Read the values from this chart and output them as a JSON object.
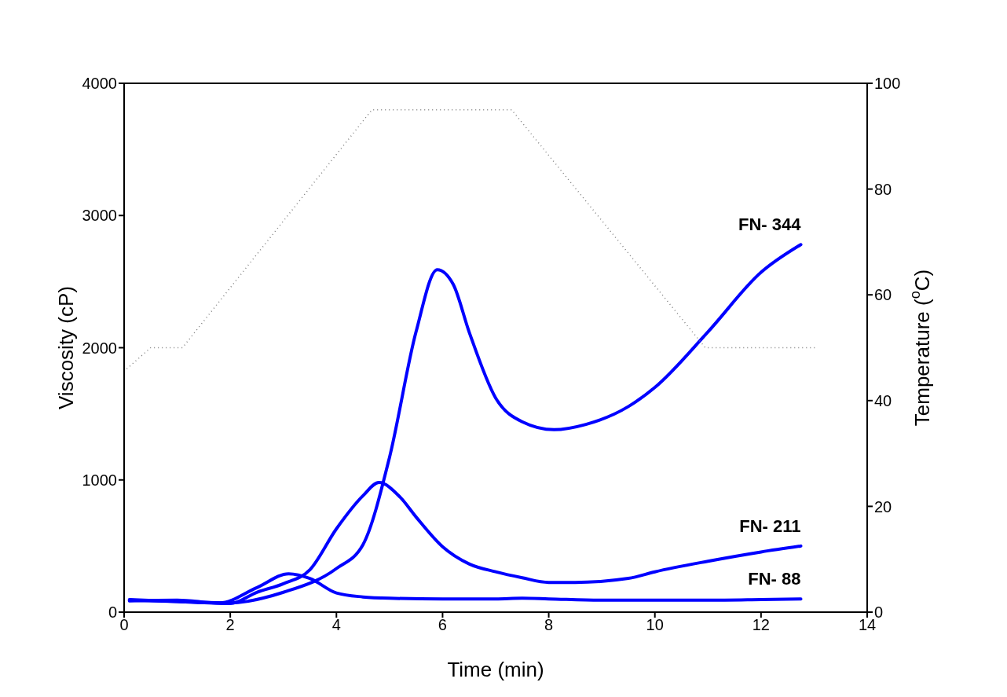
{
  "chart_data": {
    "type": "line",
    "xlabel": "Time (min)",
    "ylabel": "Viscosity (cP)",
    "y2label": "Temperature ($^{o}$C)",
    "xlim": [
      0,
      14
    ],
    "xticks": [
      0,
      2,
      4,
      6,
      8,
      10,
      12,
      14
    ],
    "ylim": [
      0,
      4000
    ],
    "yticks": [
      0,
      1000,
      2000,
      3000,
      4000
    ],
    "y2lim": [
      0,
      100
    ],
    "y2ticks": [
      0,
      20,
      40,
      60,
      80,
      100
    ],
    "marker": "none",
    "series": [
      {
        "name": "FN- 344",
        "color": "#0000ff",
        "x": [
          0.1,
          1,
          2,
          3,
          4,
          4.5,
          5,
          5.5,
          5.9,
          6.2,
          6.5,
          7,
          7.5,
          8.1,
          8.7,
          9.5,
          10,
          11,
          12,
          12.75
        ],
        "values": [
          95,
          80,
          70,
          150,
          330,
          510,
          1170,
          2120,
          2590,
          2480,
          2120,
          1620,
          1440,
          1380,
          1420,
          1555,
          1700,
          2120,
          2570,
          2780
        ]
      },
      {
        "name": "FN- 211",
        "color": "#0000ff",
        "x": [
          0.1,
          1,
          2,
          2.5,
          3,
          3.5,
          4,
          4.5,
          4.8,
          5.2,
          5.5,
          6,
          6.5,
          7,
          7.5,
          8,
          8.5,
          9.5,
          10,
          11,
          12,
          12.75
        ],
        "values": [
          90,
          80,
          65,
          150,
          215,
          320,
          630,
          880,
          980,
          870,
          720,
          495,
          365,
          305,
          260,
          225,
          225,
          255,
          305,
          385,
          455,
          500
        ]
      },
      {
        "name": "FN- 88",
        "color": "#0000ff",
        "x": [
          0.1,
          1,
          1.8,
          2.5,
          3.1,
          3.5,
          4,
          4.5,
          5,
          6,
          7,
          7.5,
          8,
          9,
          10,
          11,
          12,
          12.75
        ],
        "values": [
          85,
          90,
          70,
          185,
          290,
          255,
          145,
          115,
          105,
          100,
          100,
          105,
          100,
          90,
          90,
          90,
          95,
          100
        ]
      },
      {
        "color": "#808080",
        "axis": "y2",
        "line_style": "dotted",
        "x": [
          0.05,
          0.5,
          1.1,
          4.67,
          7.3,
          10.95,
          13.04
        ],
        "values": [
          46,
          50,
          50,
          95,
          95,
          50,
          50
        ]
      }
    ]
  }
}
